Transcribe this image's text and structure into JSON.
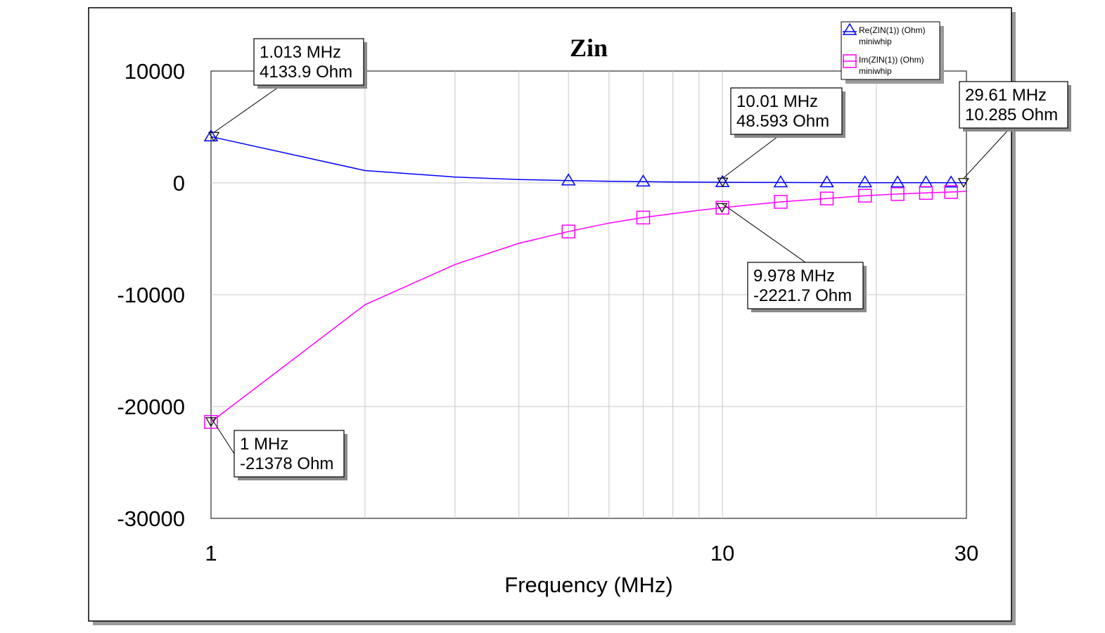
{
  "chart_data": {
    "type": "line",
    "title": "Zin",
    "xlabel": "Frequency (MHz)",
    "ylabel": "",
    "x_scale": "log",
    "xlim": [
      1,
      30
    ],
    "ylim": [
      -30000,
      10000
    ],
    "x_ticks": [
      1,
      10,
      30
    ],
    "x_tick_labels": [
      "1",
      "10",
      "30"
    ],
    "y_ticks": [
      10000,
      0,
      -10000,
      -20000,
      -30000
    ],
    "y_tick_labels": [
      "10000",
      "0",
      "-10000",
      "-20000",
      "-30000"
    ],
    "grid": true,
    "legend_position": "top-right",
    "series": [
      {
        "name": "Re(ZIN(1)) (Ohm)",
        "subtitle": "miniwhip",
        "color": "#0000ff",
        "marker": "triangle",
        "x": [
          1,
          2,
          3,
          4,
          5,
          6,
          7,
          8,
          9,
          10,
          13,
          16,
          19,
          22,
          25,
          28,
          30
        ],
        "y": [
          4134,
          1100,
          520,
          300,
          200,
          140,
          105,
          80,
          60,
          49,
          35,
          28,
          22,
          18,
          15,
          12,
          10
        ]
      },
      {
        "name": "Im(ZIN(1)) (Ohm)",
        "subtitle": "miniwhip",
        "color": "#ff00ff",
        "marker": "square",
        "x": [
          1,
          2,
          3,
          4,
          5,
          6,
          7,
          8,
          9,
          10,
          13,
          16,
          19,
          22,
          25,
          28,
          30
        ],
        "y": [
          -21378,
          -10900,
          -7300,
          -5400,
          -4350,
          -3600,
          -3100,
          -2750,
          -2450,
          -2222,
          -1700,
          -1400,
          -1150,
          -1000,
          -900,
          -820,
          -760
        ]
      }
    ],
    "markers": [
      {
        "lines": [
          "1.013 MHz",
          "4133.9 Ohm"
        ],
        "x": 1.013,
        "y": 4133.9
      },
      {
        "lines": [
          "10.01 MHz",
          "48.593 Ohm"
        ],
        "x": 10.01,
        "y": 48.593
      },
      {
        "lines": [
          "29.61 MHz",
          "10.285 Ohm"
        ],
        "x": 29.61,
        "y": 10.285
      },
      {
        "lines": [
          "9.978 MHz",
          "-2221.7 Ohm"
        ],
        "x": 9.978,
        "y": -2221.7
      },
      {
        "lines": [
          "1 MHz",
          "-21378 Ohm"
        ],
        "x": 1,
        "y": -21378
      }
    ]
  }
}
